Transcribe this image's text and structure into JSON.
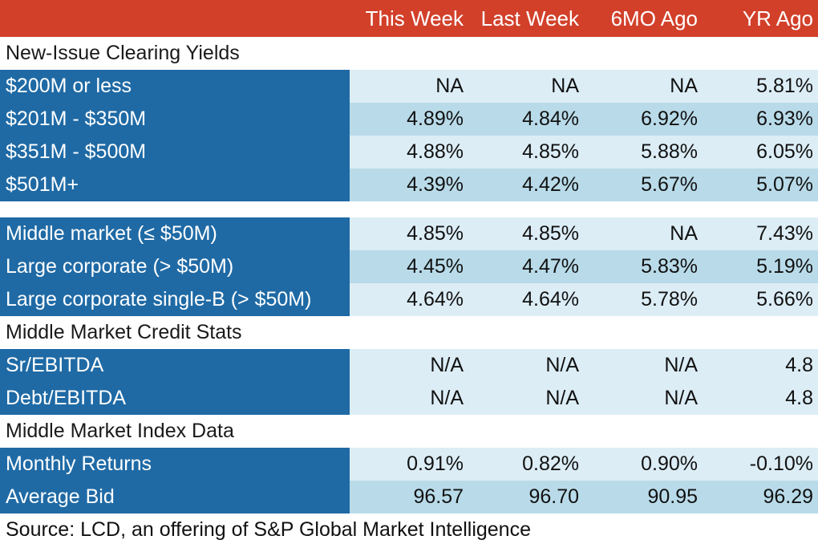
{
  "chart_data": {
    "type": "table",
    "columns": [
      "This Week",
      "Last Week",
      "6MO Ago",
      "YR Ago"
    ],
    "sections": [
      {
        "title": "New-Issue Clearing Yields",
        "rows": [
          {
            "label": "$200M or less",
            "values": [
              "NA",
              "NA",
              "NA",
              "5.81%"
            ]
          },
          {
            "label": "$201M - $350M",
            "values": [
              "4.89%",
              "4.84%",
              "6.92%",
              "6.93%"
            ]
          },
          {
            "label": "$351M - $500M",
            "values": [
              "4.88%",
              "4.85%",
              "5.88%",
              "6.05%"
            ]
          },
          {
            "label": "$501M+",
            "values": [
              "4.39%",
              "4.42%",
              "5.67%",
              "5.07%"
            ]
          }
        ]
      },
      {
        "title": "",
        "rows": [
          {
            "label": "Middle market (≤ $50M)",
            "values": [
              "4.85%",
              "4.85%",
              "NA",
              "7.43%"
            ]
          },
          {
            "label": "Large corporate (> $50M)",
            "values": [
              "4.45%",
              "4.47%",
              "5.83%",
              "5.19%"
            ]
          },
          {
            "label": "Large corporate single-B (> $50M)",
            "values": [
              "4.64%",
              "4.64%",
              "5.78%",
              "5.66%"
            ]
          }
        ]
      },
      {
        "title": "Middle Market Credit Stats",
        "rows": [
          {
            "label": "Sr/EBITDA",
            "values": [
              "N/A",
              "N/A",
              "N/A",
              "4.8"
            ]
          },
          {
            "label": "Debt/EBITDA",
            "values": [
              "N/A",
              "N/A",
              "N/A",
              "4.8"
            ]
          }
        ]
      },
      {
        "title": "Middle Market Index Data",
        "rows": [
          {
            "label": "Monthly Returns",
            "values": [
              "0.91%",
              "0.82%",
              "0.90%",
              "-0.10%"
            ]
          },
          {
            "label": "Average Bid",
            "values": [
              "96.57",
              "96.70",
              "90.95",
              "96.29"
            ]
          }
        ]
      }
    ],
    "source": "Source: LCD, an offering of S&P Global Market Intelligence"
  },
  "colors": {
    "header_bg": "#d2402a",
    "label_bg": "#1f6aa5",
    "row_light": "#dcedf6",
    "row_mid": "#b9dbe9"
  }
}
